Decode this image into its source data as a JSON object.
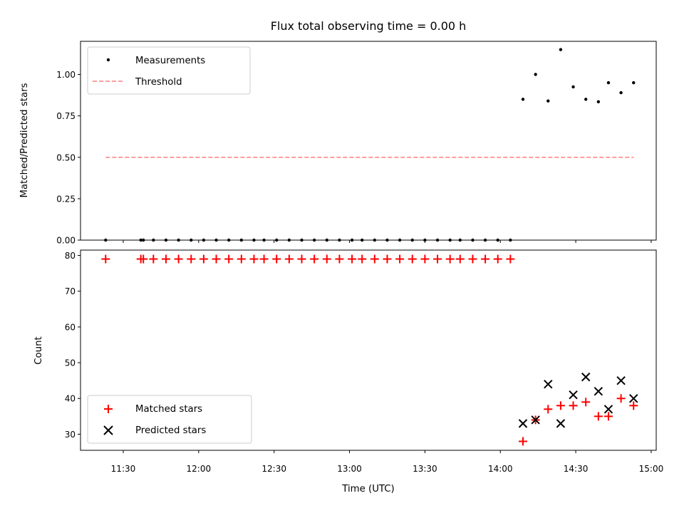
{
  "figure": {
    "title": "Flux total observing time = 0.00 h",
    "xlabel": "Time (UTC)",
    "top_ylabel": "Matched/Predicted stars",
    "bottom_ylabel": "Count"
  },
  "chart_data": [
    {
      "type": "scatter",
      "panel": "top",
      "title": "Flux total observing time = 0.00 h",
      "ylabel": "Matched/Predicted stars",
      "ylim": [
        0,
        1.2
      ],
      "xlim": [
        "11:13",
        "15:02"
      ],
      "x_ticks": [
        "11:30",
        "12:00",
        "12:30",
        "13:00",
        "13:30",
        "14:00",
        "14:30",
        "15:00"
      ],
      "y_ticks": [
        "0.00",
        "0.25",
        "0.50",
        "0.75",
        "1.00"
      ],
      "show_x_tick_labels": false,
      "grid": false,
      "legend_position": "top-left",
      "series": [
        {
          "name": "Measurements",
          "kind": "points",
          "color": "#000000",
          "x": [
            "11:23",
            "11:37",
            "11:38",
            "11:42",
            "11:47",
            "11:52",
            "11:57",
            "12:02",
            "12:07",
            "12:12",
            "12:17",
            "12:22",
            "12:26",
            "12:31",
            "12:36",
            "12:41",
            "12:46",
            "12:51",
            "12:56",
            "13:01",
            "13:05",
            "13:10",
            "13:15",
            "13:20",
            "13:25",
            "13:30",
            "13:35",
            "13:40",
            "13:44",
            "13:49",
            "13:54",
            "13:59",
            "14:04",
            "14:09",
            "14:14",
            "14:19",
            "14:24",
            "14:29",
            "14:34",
            "14:39",
            "14:43",
            "14:48",
            "14:53"
          ],
          "y": [
            0,
            0,
            0,
            0,
            0,
            0,
            0,
            0,
            0,
            0,
            0,
            0,
            0,
            0,
            0,
            0,
            0,
            0,
            0,
            0,
            0,
            0,
            0,
            0,
            0,
            0,
            0,
            0,
            0,
            0,
            0,
            0,
            0,
            0.85,
            1.0,
            0.84,
            1.15,
            0.925,
            0.85,
            0.835,
            0.95,
            0.89,
            0.95
          ]
        },
        {
          "name": "Threshold",
          "kind": "dashed-line",
          "color": "#ff7f7f",
          "x": [
            "11:23",
            "14:53"
          ],
          "y": [
            0.5,
            0.5
          ]
        }
      ]
    },
    {
      "type": "scatter",
      "panel": "bottom",
      "xlabel": "Time (UTC)",
      "ylabel": "Count",
      "ylim": [
        25.5,
        81.5
      ],
      "xlim": [
        "11:13",
        "15:02"
      ],
      "x_ticks": [
        "11:30",
        "12:00",
        "12:30",
        "13:00",
        "13:30",
        "14:00",
        "14:30",
        "15:00"
      ],
      "y_ticks": [
        "30",
        "40",
        "50",
        "60",
        "70",
        "80"
      ],
      "grid": false,
      "legend_position": "bottom-left",
      "series": [
        {
          "name": "Matched stars",
          "kind": "plus",
          "color": "#ff0000",
          "x": [
            "11:23",
            "11:37",
            "11:38",
            "11:42",
            "11:47",
            "11:52",
            "11:57",
            "12:02",
            "12:07",
            "12:12",
            "12:17",
            "12:22",
            "12:26",
            "12:31",
            "12:36",
            "12:41",
            "12:46",
            "12:51",
            "12:56",
            "13:01",
            "13:05",
            "13:10",
            "13:15",
            "13:20",
            "13:25",
            "13:30",
            "13:35",
            "13:40",
            "13:44",
            "13:49",
            "13:54",
            "13:59",
            "14:04",
            "14:09",
            "14:14",
            "14:19",
            "14:24",
            "14:29",
            "14:34",
            "14:39",
            "14:43",
            "14:48",
            "14:53"
          ],
          "y": [
            79,
            79,
            79,
            79,
            79,
            79,
            79,
            79,
            79,
            79,
            79,
            79,
            79,
            79,
            79,
            79,
            79,
            79,
            79,
            79,
            79,
            79,
            79,
            79,
            79,
            79,
            79,
            79,
            79,
            79,
            79,
            79,
            79,
            28,
            34,
            37,
            38,
            38,
            39,
            35,
            35,
            40,
            38
          ]
        },
        {
          "name": "Predicted stars",
          "kind": "x",
          "color": "#000000",
          "x": [
            "14:09",
            "14:14",
            "14:19",
            "14:24",
            "14:29",
            "14:34",
            "14:39",
            "14:43",
            "14:48",
            "14:53"
          ],
          "y": [
            33,
            34,
            44,
            33,
            41,
            46,
            42,
            37,
            45,
            40
          ]
        }
      ]
    }
  ]
}
